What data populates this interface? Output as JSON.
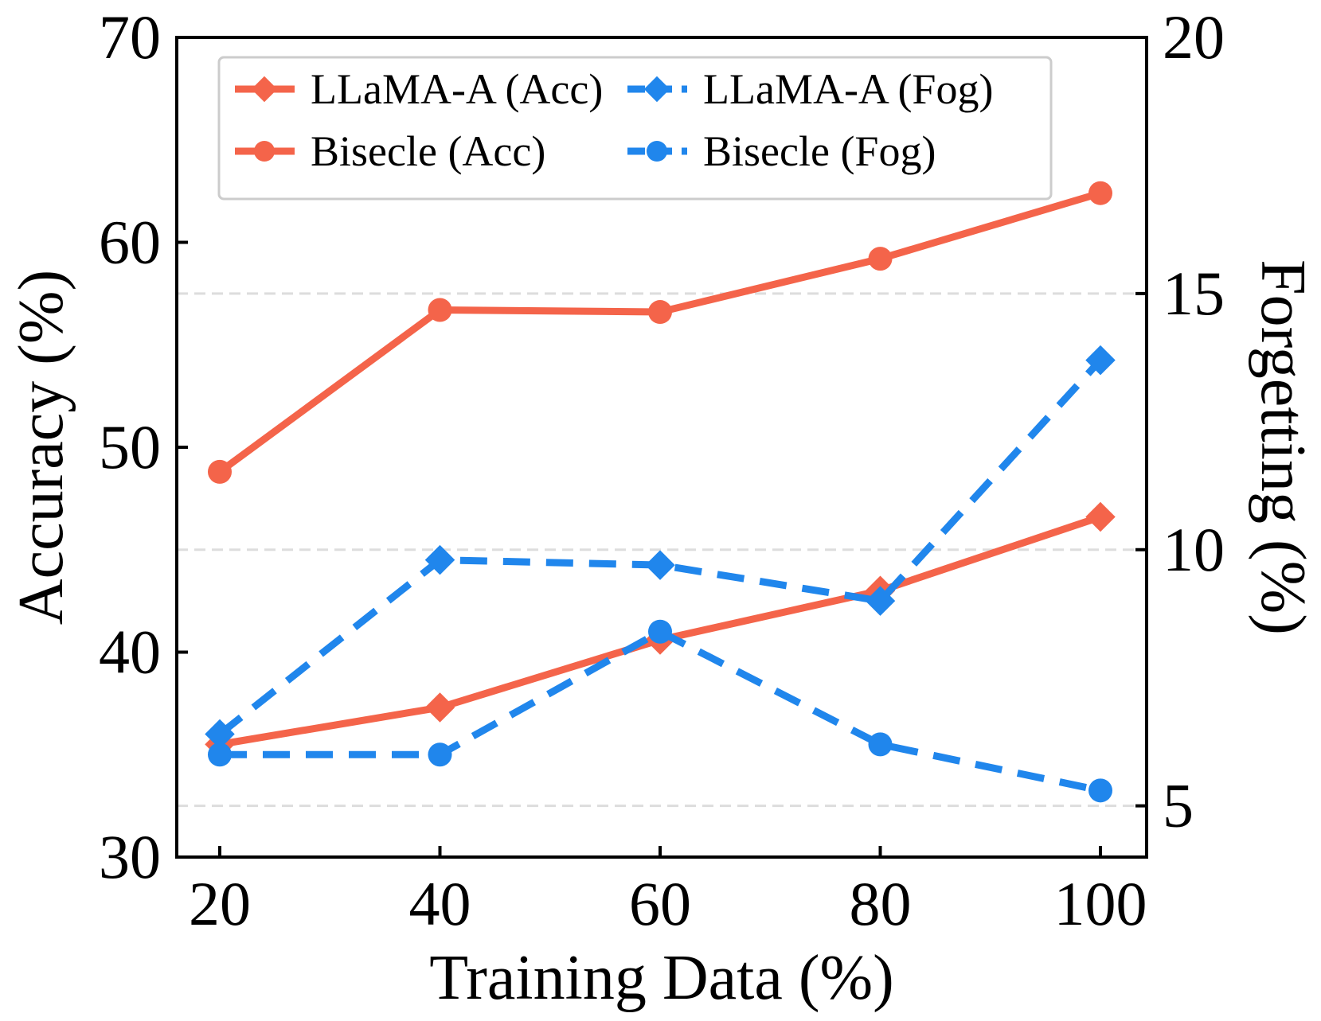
{
  "chart_data": {
    "type": "line",
    "x": [
      20,
      40,
      60,
      80,
      100
    ],
    "xlabel": "Training Data (%)",
    "ylabel_left": "Accuracy (%)",
    "ylabel_right": "Forgetting (%)",
    "ylim_left": [
      30,
      70
    ],
    "ylim_right": [
      4,
      20
    ],
    "xticks": [
      "20",
      "40",
      "60",
      "80",
      "100"
    ],
    "yticks_left": [
      "30",
      "40",
      "50",
      "60",
      "70"
    ],
    "yticks_right": [
      "5",
      "10",
      "15",
      "20"
    ],
    "yticks_right_values": [
      5,
      10,
      15,
      20
    ],
    "grid": "horizontal dashed at right-axis ticks",
    "legend_placement": "top",
    "series": [
      {
        "name": "LLaMA-A (Acc)",
        "axis": "left",
        "marker": "diamond",
        "linestyle": "solid",
        "color": "#f4644a",
        "values": [
          35.5,
          37.3,
          40.6,
          43.0,
          46.6
        ]
      },
      {
        "name": "Bisecle (Acc)",
        "axis": "left",
        "marker": "circle",
        "linestyle": "solid",
        "color": "#f4644a",
        "values": [
          48.8,
          56.7,
          56.6,
          59.2,
          62.4
        ]
      },
      {
        "name": "LLaMA-A (Fog)",
        "axis": "right",
        "marker": "diamond",
        "linestyle": "dashed",
        "color": "#2086ec",
        "values": [
          6.4,
          9.8,
          9.7,
          9.0,
          13.7
        ]
      },
      {
        "name": "Bisecle (Fog)",
        "axis": "right",
        "marker": "circle",
        "linestyle": "dashed",
        "color": "#2086ec",
        "values": [
          6.0,
          6.0,
          8.4,
          6.2,
          5.3
        ]
      }
    ]
  }
}
